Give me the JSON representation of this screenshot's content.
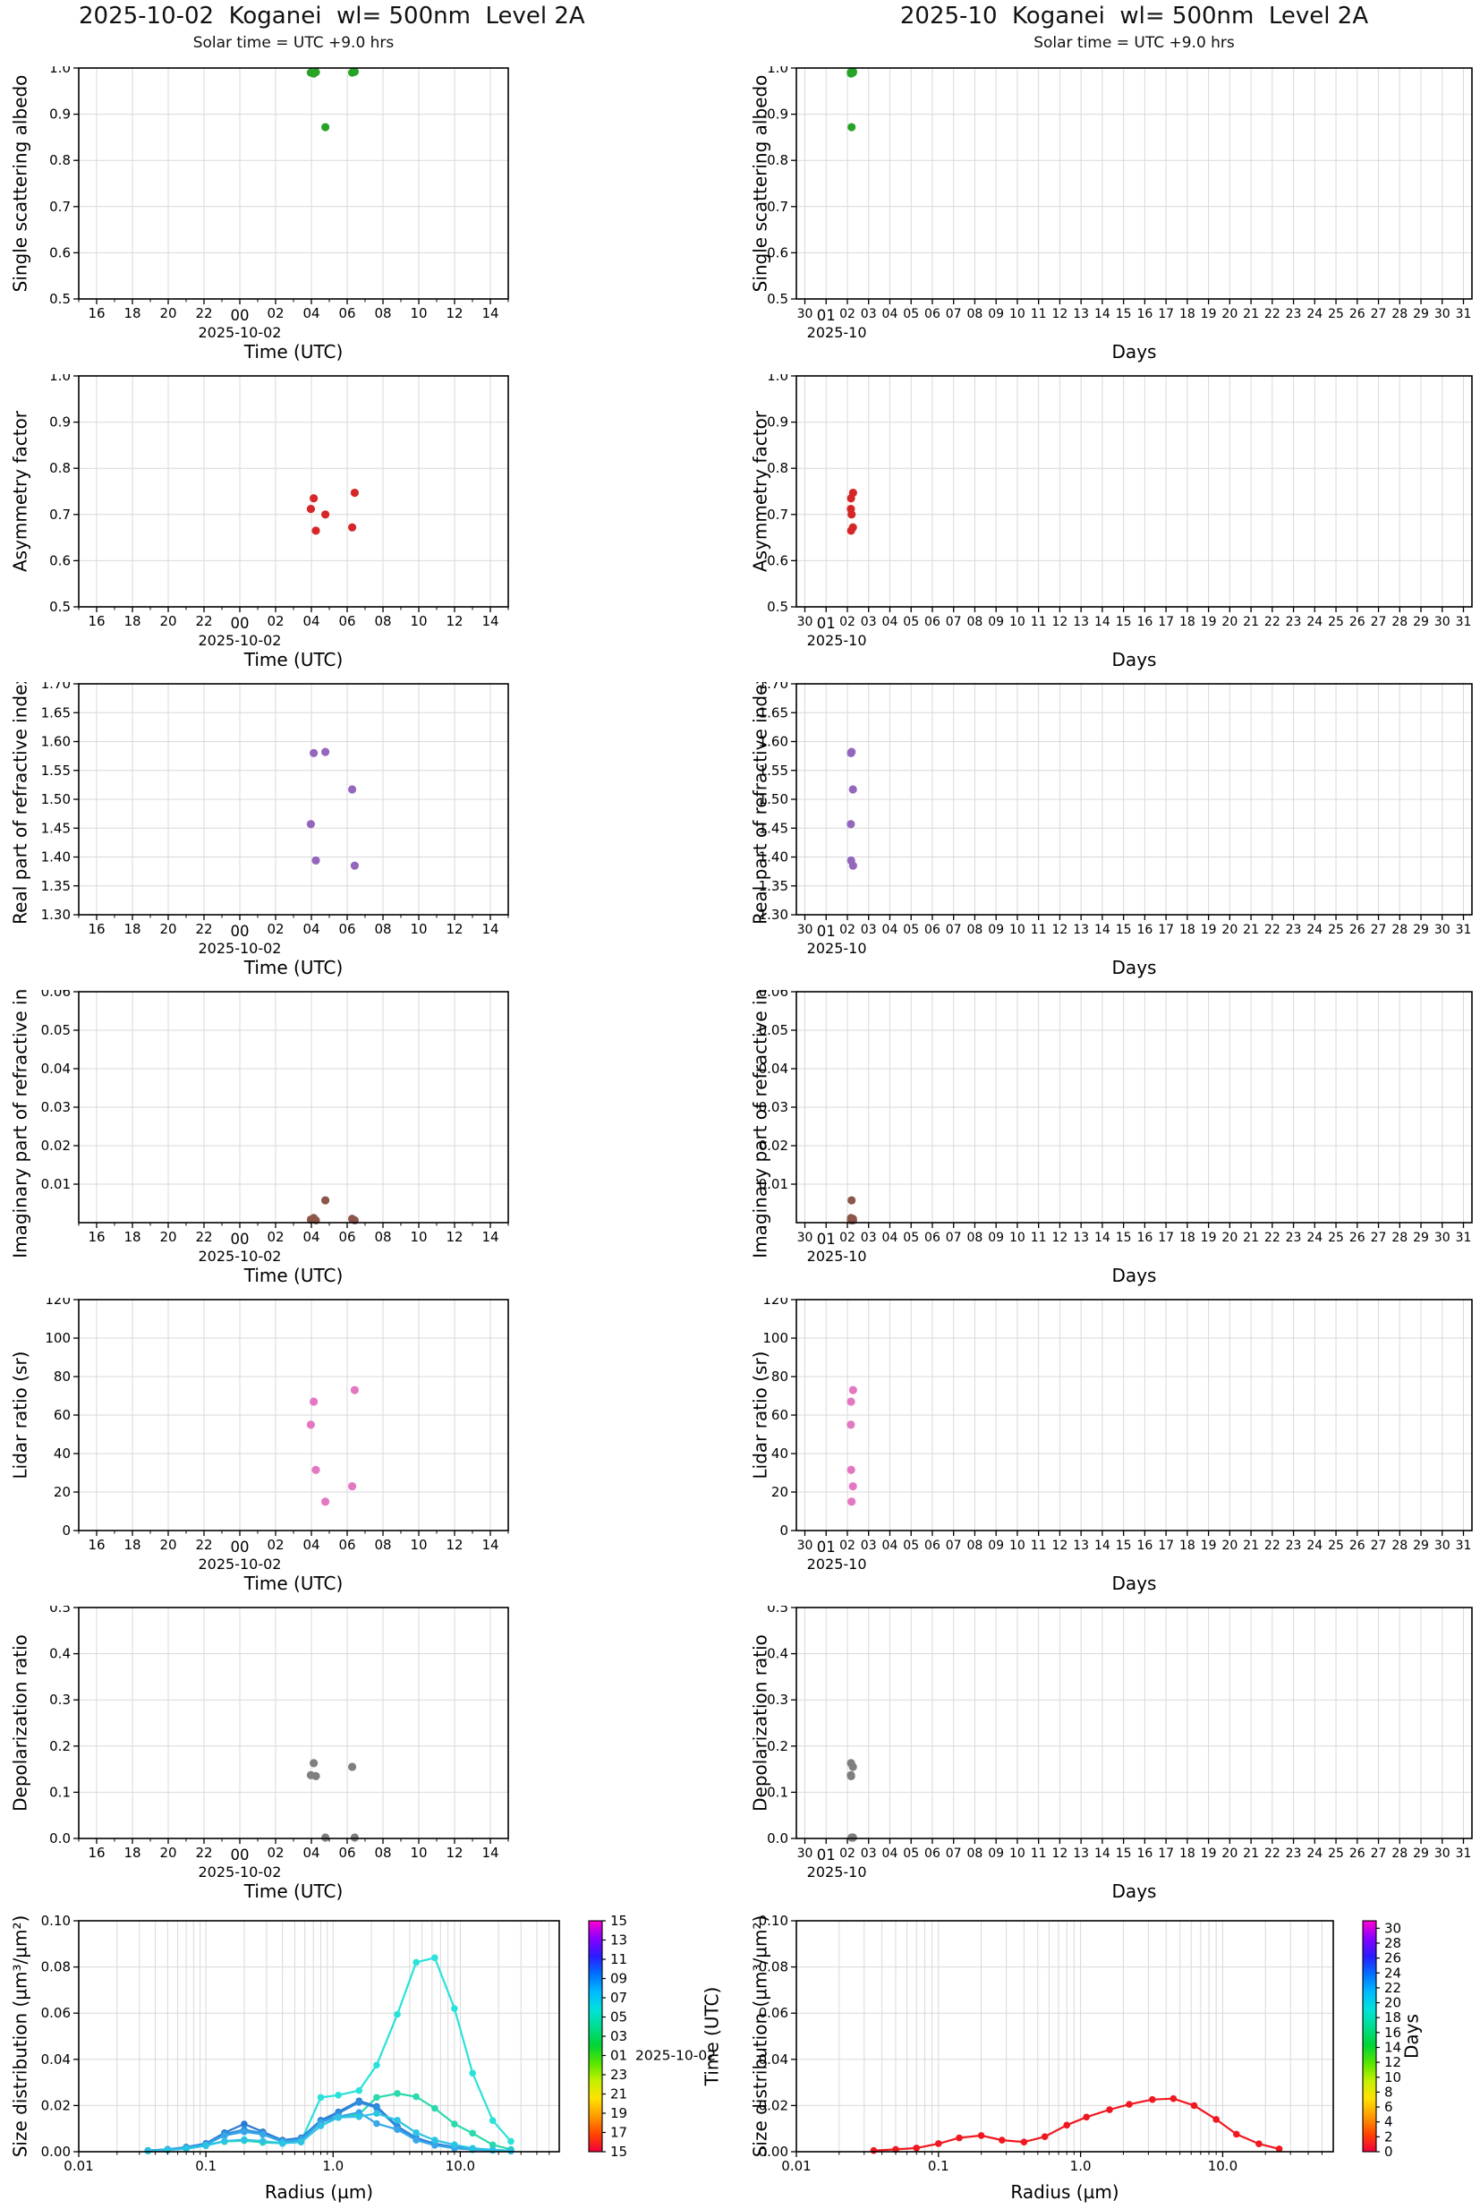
{
  "columns": [
    {
      "title": "2025-10-02  Koganei  wl= 500nm  Level 2A",
      "subtitle": "Solar time = UTC +9.0 hrs"
    },
    {
      "title": "2025-10  Koganei  wl= 500nm  Level 2A",
      "subtitle": "Solar time = UTC +9.0 hrs"
    }
  ],
  "chart_data": {
    "axes": {
      "time": {
        "domain": [
          15,
          39
        ],
        "tick_vals": [
          16,
          18,
          20,
          22,
          24,
          26,
          28,
          30,
          32,
          34,
          36,
          38
        ],
        "tick_labels": [
          "16",
          "18",
          "20",
          "22",
          "00",
          "02",
          "04",
          "06",
          "08",
          "10",
          "12",
          "14"
        ],
        "minor_step": 1,
        "emph_val": 24,
        "xlabel": "Time (UTC)",
        "date_label": "2025-10-02",
        "date_anchor": 24
      },
      "days": {
        "domain": [
          -0.4,
          31.4
        ],
        "tick_vals": [
          0,
          1,
          2,
          3,
          4,
          5,
          6,
          7,
          8,
          9,
          10,
          11,
          12,
          13,
          14,
          15,
          16,
          17,
          18,
          19,
          20,
          21,
          22,
          23,
          24,
          25,
          26,
          27,
          28,
          29,
          30,
          31
        ],
        "tick_labels": [
          "30",
          "01",
          "02",
          "03",
          "04",
          "05",
          "06",
          "07",
          "08",
          "09",
          "10",
          "11",
          "12",
          "13",
          "14",
          "15",
          "16",
          "17",
          "18",
          "19",
          "20",
          "21",
          "22",
          "23",
          "24",
          "25",
          "26",
          "27",
          "28",
          "29",
          "30",
          "31"
        ],
        "emph_val": 1,
        "xlabel": "Days",
        "date_label": "2025-10",
        "date_anchor": 1.5
      },
      "radius": {
        "domain": [
          0.01,
          60
        ],
        "log": true,
        "tick_vals": [
          0.01,
          0.1,
          1,
          10
        ],
        "tick_labels": [
          "0.01",
          "0.1",
          "1.0",
          "10.0"
        ],
        "xlabel": "Radius (µm)"
      }
    },
    "y_axes": {
      "ssa": {
        "label": "Single scattering albedo",
        "domain": [
          0.5,
          1.0
        ],
        "tick_vals": [
          0.5,
          0.6,
          0.7,
          0.8,
          0.9,
          1.0
        ],
        "tick_labels": [
          "0.5",
          "0.6",
          "0.7",
          "0.8",
          "0.9",
          "1.0"
        ]
      },
      "asym": {
        "label": "Asymmetry factor",
        "domain": [
          0.5,
          1.0
        ],
        "tick_vals": [
          0.5,
          0.6,
          0.7,
          0.8,
          0.9,
          1.0
        ],
        "tick_labels": [
          "0.5",
          "0.6",
          "0.7",
          "0.8",
          "0.9",
          "1.0"
        ]
      },
      "rri": {
        "label": "Real part of refractive index",
        "domain": [
          1.3,
          1.7
        ],
        "tick_vals": [
          1.3,
          1.35,
          1.4,
          1.45,
          1.5,
          1.55,
          1.6,
          1.65,
          1.7
        ],
        "tick_labels": [
          "1.30",
          "1.35",
          "1.40",
          "1.45",
          "1.50",
          "1.55",
          "1.60",
          "1.65",
          "1.70"
        ]
      },
      "iri": {
        "label": "Imaginary part of refractive index",
        "domain": [
          0,
          0.06
        ],
        "tick_vals": [
          0.01,
          0.02,
          0.03,
          0.04,
          0.05,
          0.06
        ],
        "tick_labels": [
          "0.01",
          "0.02",
          "0.03",
          "0.04",
          "0.05",
          "0.06"
        ]
      },
      "lidar": {
        "label": "Lidar ratio (sr)",
        "domain": [
          0,
          120
        ],
        "tick_vals": [
          0,
          20,
          40,
          60,
          80,
          100,
          120
        ],
        "tick_labels": [
          "0",
          "20",
          "40",
          "60",
          "80",
          "100",
          "120"
        ]
      },
      "depol": {
        "label": "Depolarization ratio",
        "domain": [
          0,
          0.5
        ],
        "tick_vals": [
          0,
          0.1,
          0.2,
          0.3,
          0.4,
          0.5
        ],
        "tick_labels": [
          "0.0",
          "0.1",
          "0.2",
          "0.3",
          "0.4",
          "0.5"
        ]
      },
      "size": {
        "label": "Size distribution (µm³/µm²)",
        "domain": [
          0,
          0.1
        ],
        "tick_vals": [
          0,
          0.02,
          0.04,
          0.06,
          0.08,
          0.1
        ],
        "tick_labels": [
          "0.00",
          "0.02",
          "0.04",
          "0.06",
          "0.08",
          "0.10"
        ]
      }
    },
    "obs_hours_utc": [
      27.97,
      28.13,
      28.25,
      28.78,
      30.28,
      30.42
    ],
    "obs_days": [
      2.165,
      2.172,
      2.177,
      2.199,
      2.262,
      2.268
    ],
    "charts": [
      {
        "name": "ssa-daily",
        "col": 0,
        "row": 0,
        "type": "scatter",
        "x_axis": "time",
        "y_axis": "ssa",
        "marker_color": "#27a327",
        "points_x": [
          27.97,
          28.13,
          28.25,
          28.78,
          30.28,
          30.42
        ],
        "points_y": [
          0.99,
          0.988,
          0.991,
          0.872,
          0.99,
          0.992
        ]
      },
      {
        "name": "ssa-monthly",
        "col": 1,
        "row": 0,
        "type": "scatter",
        "x_axis": "days",
        "y_axis": "ssa",
        "marker_color": "#27a327",
        "points_x": [
          2.165,
          2.172,
          2.177,
          2.199,
          2.262,
          2.268
        ],
        "points_y": [
          0.99,
          0.988,
          0.991,
          0.872,
          0.99,
          0.992
        ]
      },
      {
        "name": "asym-daily",
        "col": 0,
        "row": 1,
        "type": "scatter",
        "x_axis": "time",
        "y_axis": "asym",
        "marker_color": "#d62728",
        "points_x": [
          27.97,
          28.13,
          28.25,
          28.78,
          30.28,
          30.42
        ],
        "points_y": [
          0.712,
          0.735,
          0.665,
          0.7,
          0.672,
          0.747
        ]
      },
      {
        "name": "asym-monthly",
        "col": 1,
        "row": 1,
        "type": "scatter",
        "x_axis": "days",
        "y_axis": "asym",
        "marker_color": "#d62728",
        "points_x": [
          2.165,
          2.172,
          2.177,
          2.199,
          2.262,
          2.268
        ],
        "points_y": [
          0.712,
          0.735,
          0.665,
          0.7,
          0.672,
          0.747
        ]
      },
      {
        "name": "rri-daily",
        "col": 0,
        "row": 2,
        "type": "scatter",
        "x_axis": "time",
        "y_axis": "rri",
        "marker_color": "#9467bd",
        "points_x": [
          27.97,
          28.13,
          28.25,
          28.78,
          30.28,
          30.42
        ],
        "points_y": [
          1.457,
          1.58,
          1.394,
          1.582,
          1.517,
          1.385
        ]
      },
      {
        "name": "rri-monthly",
        "col": 1,
        "row": 2,
        "type": "scatter",
        "x_axis": "days",
        "y_axis": "rri",
        "marker_color": "#9467bd",
        "points_x": [
          2.165,
          2.172,
          2.177,
          2.199,
          2.262,
          2.268
        ],
        "points_y": [
          1.457,
          1.58,
          1.394,
          1.582,
          1.517,
          1.385
        ]
      },
      {
        "name": "iri-daily",
        "col": 0,
        "row": 3,
        "type": "scatter",
        "x_axis": "time",
        "y_axis": "iri",
        "marker_color": "#8c564b",
        "points_x": [
          27.97,
          28.13,
          28.25,
          28.78,
          30.28,
          30.42
        ],
        "points_y": [
          0.0008,
          0.0012,
          0.0006,
          0.0058,
          0.001,
          0.0006
        ]
      },
      {
        "name": "iri-monthly",
        "col": 1,
        "row": 3,
        "type": "scatter",
        "x_axis": "days",
        "y_axis": "iri",
        "marker_color": "#8c564b",
        "points_x": [
          2.165,
          2.172,
          2.177,
          2.199,
          2.262,
          2.268
        ],
        "points_y": [
          0.0008,
          0.0012,
          0.0006,
          0.0058,
          0.001,
          0.0006
        ]
      },
      {
        "name": "lidar-daily",
        "col": 0,
        "row": 4,
        "type": "scatter",
        "x_axis": "time",
        "y_axis": "lidar",
        "marker_color": "#e377c2",
        "points_x": [
          27.97,
          28.13,
          28.25,
          28.78,
          30.28,
          30.42
        ],
        "points_y": [
          55,
          67,
          31.5,
          15,
          23,
          73
        ]
      },
      {
        "name": "lidar-monthly",
        "col": 1,
        "row": 4,
        "type": "scatter",
        "x_axis": "days",
        "y_axis": "lidar",
        "marker_color": "#e377c2",
        "points_x": [
          2.165,
          2.172,
          2.177,
          2.199,
          2.262,
          2.268
        ],
        "points_y": [
          55,
          67,
          31.5,
          15,
          23,
          73
        ]
      },
      {
        "name": "depol-daily",
        "col": 0,
        "row": 5,
        "type": "scatter",
        "x_axis": "time",
        "y_axis": "depol",
        "marker_color": "#7f7f7f",
        "points_x": [
          27.97,
          28.13,
          28.25,
          28.78,
          30.28,
          30.42
        ],
        "points_y": [
          0.137,
          0.163,
          0.135,
          0.002,
          0.155,
          0.002
        ]
      },
      {
        "name": "depol-monthly",
        "col": 1,
        "row": 5,
        "type": "scatter",
        "x_axis": "days",
        "y_axis": "depol",
        "marker_color": "#7f7f7f",
        "points_x": [
          2.165,
          2.172,
          2.177,
          2.199,
          2.262,
          2.268
        ],
        "points_y": [
          0.137,
          0.163,
          0.135,
          0.002,
          0.155,
          0.002
        ]
      },
      {
        "name": "sizedist-daily",
        "col": 0,
        "row": 6,
        "type": "line",
        "x_axis": "radius",
        "y_axis": "size",
        "radii": [
          0.035,
          0.05,
          0.07,
          0.1,
          0.14,
          0.2,
          0.28,
          0.4,
          0.56,
          0.8,
          1.1,
          1.6,
          2.2,
          3.2,
          4.5,
          6.3,
          9.0,
          12.5,
          18.0,
          25.0
        ],
        "series": [
          {
            "color": "#29e2da",
            "values": [
              0.0005,
              0.001,
              0.0015,
              0.003,
              0.0045,
              0.005,
              0.0042,
              0.004,
              0.0046,
              0.0235,
              0.0245,
              0.0265,
              0.0375,
              0.0595,
              0.082,
              0.084,
              0.062,
              0.034,
              0.0135,
              0.0045
            ]
          },
          {
            "color": "#2bd9ac",
            "values": [
              0.0004,
              0.0008,
              0.0013,
              0.0028,
              0.0044,
              0.0048,
              0.004,
              0.0036,
              0.0045,
              0.0135,
              0.015,
              0.0162,
              0.0235,
              0.0252,
              0.0238,
              0.0188,
              0.012,
              0.008,
              0.003,
              0.001
            ]
          },
          {
            "color": "#2979d2",
            "values": [
              0.0005,
              0.001,
              0.002,
              0.0036,
              0.0082,
              0.012,
              0.0086,
              0.005,
              0.006,
              0.0136,
              0.0172,
              0.022,
              0.0196,
              0.011,
              0.006,
              0.0035,
              0.002,
              0.0012,
              0.0008,
              0.0004
            ]
          },
          {
            "color": "#2e8ede",
            "values": [
              0.0005,
              0.001,
              0.0019,
              0.0034,
              0.0076,
              0.0096,
              0.008,
              0.0046,
              0.0056,
              0.013,
              0.0166,
              0.0214,
              0.019,
              0.0105,
              0.0055,
              0.003,
              0.0018,
              0.001,
              0.0007,
              0.0003
            ]
          },
          {
            "color": "#36a6e8",
            "values": [
              0.0004,
              0.0009,
              0.0017,
              0.0031,
              0.007,
              0.0086,
              0.0075,
              0.0043,
              0.0051,
              0.0126,
              0.0152,
              0.017,
              0.0122,
              0.0096,
              0.005,
              0.0028,
              0.0015,
              0.0009,
              0.0006,
              0.0003
            ]
          },
          {
            "color": "#2cc4e4",
            "values": [
              0.0003,
              0.0007,
              0.0013,
              0.0026,
              0.0046,
              0.0052,
              0.0046,
              0.0036,
              0.0042,
              0.0112,
              0.0148,
              0.0152,
              0.0166,
              0.0136,
              0.0082,
              0.005,
              0.003,
              0.0015,
              0.0008,
              0.0004
            ]
          }
        ],
        "colorbar": {
          "label": "Time (UTC)",
          "domain_bottom": 15,
          "domain_top": 39,
          "tick_vals": [
            39,
            37,
            35,
            33,
            31,
            29,
            27,
            25,
            23,
            21,
            19,
            17,
            15
          ],
          "tick_labels": [
            "15",
            "13",
            "11",
            "09",
            "07",
            "05",
            "03",
            "01",
            "23",
            "21",
            "19",
            "17",
            "15"
          ],
          "annotation": "2025-10-02",
          "annotation_val": 25,
          "gradient_bottom_to_top": [
            "#f2003c",
            "#ff4600",
            "#ff9b00",
            "#ffe100",
            "#c3f000",
            "#55e600",
            "#00d435",
            "#00dd8f",
            "#00e2da",
            "#00baff",
            "#0070ff",
            "#2b1bff",
            "#8800ff",
            "#ff00d2"
          ]
        }
      },
      {
        "name": "sizedist-monthly",
        "col": 1,
        "row": 6,
        "type": "line",
        "x_axis": "radius",
        "y_axis": "size",
        "radii": [
          0.035,
          0.05,
          0.07,
          0.1,
          0.14,
          0.2,
          0.28,
          0.4,
          0.56,
          0.8,
          1.1,
          1.6,
          2.2,
          3.2,
          4.5,
          6.3,
          9.0,
          12.5,
          18.0,
          25.0
        ],
        "series": [
          {
            "color": "#f01820",
            "values": [
              0.0005,
              0.001,
              0.0016,
              0.0035,
              0.006,
              0.007,
              0.005,
              0.0042,
              0.0065,
              0.0115,
              0.015,
              0.0182,
              0.0205,
              0.0226,
              0.023,
              0.02,
              0.014,
              0.0076,
              0.0034,
              0.0012
            ]
          }
        ],
        "colorbar": {
          "label": "Days",
          "domain_bottom": 0,
          "domain_top": 31,
          "tick_vals": [
            30,
            28,
            26,
            24,
            22,
            20,
            18,
            16,
            14,
            12,
            10,
            8,
            6,
            4,
            2,
            0
          ],
          "tick_labels": [
            "30",
            "28",
            "26",
            "24",
            "22",
            "20",
            "18",
            "16",
            "14",
            "12",
            "10",
            "8",
            "6",
            "4",
            "2",
            "0"
          ],
          "gradient_bottom_to_top": [
            "#f2003c",
            "#ff4600",
            "#ff9b00",
            "#ffe100",
            "#c3f000",
            "#55e600",
            "#00d435",
            "#00dd8f",
            "#00e2da",
            "#00baff",
            "#0070ff",
            "#2b1bff",
            "#8800ff",
            "#ff00d2"
          ]
        }
      }
    ]
  }
}
